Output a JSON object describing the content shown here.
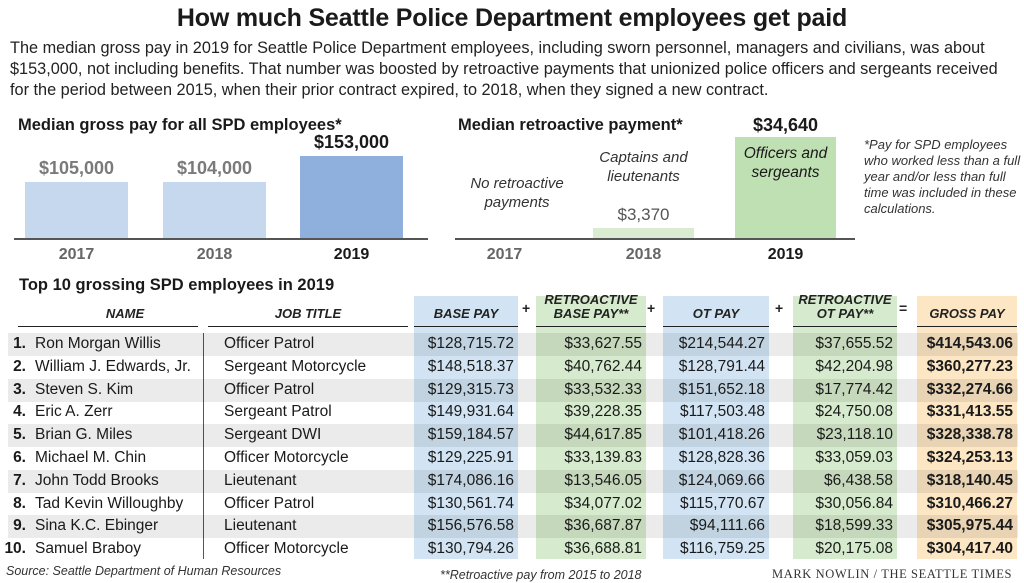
{
  "title": "How much Seattle Police Department employees get paid",
  "intro": "The median gross pay in 2019 for Seattle Police Department employees, including sworn personnel, managers and civilians, was about $153,000, not including benefits. That number was boosted by retroactive payments that unionized police officers and sergeants received for the period between 2015, when their prior contract expired, to 2018, when they signed a new contract.",
  "note": "*Pay for SPD employees who worked less than a full year and/or less than full time was included in these calculations.",
  "colors": {
    "bar_light": "#c5d8ee",
    "bar_dark": "#8fb0dc",
    "green_light": "#d9ecd2",
    "green_dark": "#bfe0b3",
    "blue_col": "#d2e4f3",
    "green_col": "#d6ebcd",
    "gross_col": "#fce6c4"
  },
  "chart_data": [
    {
      "type": "bar",
      "title": "Median gross pay for all SPD employees*",
      "categories": [
        "2017",
        "2018",
        "2019"
      ],
      "values": [
        105000,
        104000,
        153000
      ],
      "value_labels": [
        "$105,000",
        "$104,000",
        "$153,000"
      ],
      "ylim": [
        0,
        160000
      ]
    },
    {
      "type": "bar",
      "title": "Median retroactive payment*",
      "categories": [
        "2017",
        "2018",
        "2019"
      ],
      "values": [
        0,
        3370,
        34640
      ],
      "value_labels": [
        "",
        "$3,370",
        "$34,640"
      ],
      "bar_labels": [
        "No retroactive payments",
        "Captains and lieutenants",
        "Officers and sergeants"
      ],
      "ylim": [
        0,
        35000
      ]
    },
    {
      "type": "table",
      "title": "Top 10 grossing SPD employees in 2019",
      "columns": [
        "NAME",
        "JOB TITLE",
        "BASE PAY",
        "RETROACTIVE BASE PAY**",
        "OT PAY",
        "RETROACTIVE OT PAY**",
        "GROSS PAY"
      ],
      "operators": [
        "+",
        "+",
        "+",
        "="
      ],
      "rows": [
        {
          "rank": "1.",
          "name": "Ron Morgan Willis",
          "job": "Officer Patrol",
          "base": "$128,715.72",
          "retro_base": "$33,627.55",
          "ot": "$214,544.27",
          "retro_ot": "$37,655.52",
          "gross": "$414,543.06"
        },
        {
          "rank": "2.",
          "name": "William J. Edwards, Jr.",
          "job": "Sergeant Motorcycle",
          "base": "$148,518.37",
          "retro_base": "$40,762.44",
          "ot": "$128,791.44",
          "retro_ot": "$42,204.98",
          "gross": "$360,277.23"
        },
        {
          "rank": "3.",
          "name": "Steven S. Kim",
          "job": "Officer Patrol",
          "base": "$129,315.73",
          "retro_base": "$33,532.33",
          "ot": "$151,652.18",
          "retro_ot": "$17,774.42",
          "gross": "$332,274.66"
        },
        {
          "rank": "4.",
          "name": "Eric A. Zerr",
          "job": "Sergeant Patrol",
          "base": "$149,931.64",
          "retro_base": "$39,228.35",
          "ot": "$117,503.48",
          "retro_ot": "$24,750.08",
          "gross": "$331,413.55"
        },
        {
          "rank": "5.",
          "name": "Brian G. Miles",
          "job": "Sergeant DWI",
          "base": "$159,184.57",
          "retro_base": "$44,617.85",
          "ot": "$101,418.26",
          "retro_ot": "$23,118.10",
          "gross": "$328,338.78"
        },
        {
          "rank": "6.",
          "name": "Michael M. Chin",
          "job": "Officer Motorcycle",
          "base": "$129,225.91",
          "retro_base": "$33,139.83",
          "ot": "$128,828.36",
          "retro_ot": "$33,059.03",
          "gross": "$324,253.13"
        },
        {
          "rank": "7.",
          "name": "John Todd Brooks",
          "job": "Lieutenant",
          "base": "$174,086.16",
          "retro_base": "$13,546.05",
          "ot": "$124,069.66",
          "retro_ot": "$6,438.58",
          "gross": "$318,140.45"
        },
        {
          "rank": "8.",
          "name": "Tad Kevin Willoughby",
          "job": "Officer Patrol",
          "base": "$130,561.74",
          "retro_base": "$34,077.02",
          "ot": "$115,770.67",
          "retro_ot": "$30,056.84",
          "gross": "$310,466.27"
        },
        {
          "rank": "9.",
          "name": "Sina K.C. Ebinger",
          "job": "Lieutenant",
          "base": "$156,576.58",
          "retro_base": "$36,687.87",
          "ot": "$94,111.66",
          "retro_ot": "$18,599.33",
          "gross": "$305,975.44"
        },
        {
          "rank": "10.",
          "name": "Samuel Braboy",
          "job": "Officer Motorcycle",
          "base": "$130,794.26",
          "retro_base": "$36,688.81",
          "ot": "$116,759.25",
          "retro_ot": "$20,175.08",
          "gross": "$304,417.40"
        }
      ]
    }
  ],
  "source": "Source: Seattle Department of Human Resources",
  "footnote": "**Retroactive pay from 2015 to 2018",
  "credit": "MARK NOWLIN / THE SEATTLE TIMES"
}
